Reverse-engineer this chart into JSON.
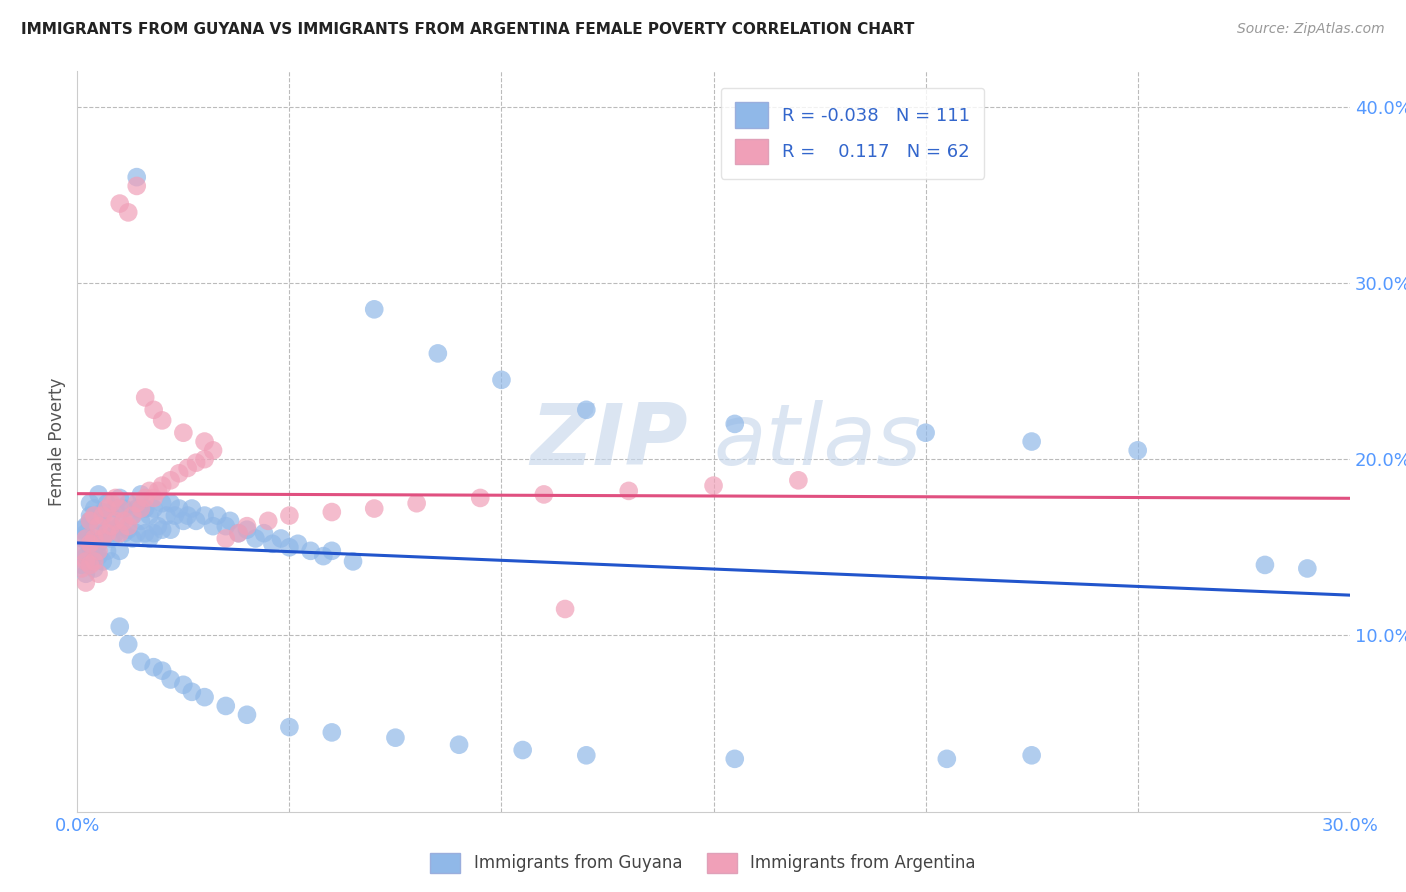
{
  "title": "IMMIGRANTS FROM GUYANA VS IMMIGRANTS FROM ARGENTINA FEMALE POVERTY CORRELATION CHART",
  "source": "Source: ZipAtlas.com",
  "ylabel_label": "Female Poverty",
  "xlim": [
    0.0,
    0.3
  ],
  "ylim": [
    0.0,
    0.42
  ],
  "xtick_vals": [
    0.0,
    0.05,
    0.1,
    0.15,
    0.2,
    0.25,
    0.3
  ],
  "xtick_labels": [
    "0.0%",
    "",
    "",
    "",
    "",
    "",
    "30.0%"
  ],
  "ytick_vals": [
    0.0,
    0.1,
    0.2,
    0.3,
    0.4
  ],
  "ytick_labels": [
    "",
    "10.0%",
    "20.0%",
    "30.0%",
    "40.0%"
  ],
  "guyana_color": "#90b8e8",
  "argentina_color": "#f0a0b8",
  "guyana_line_color": "#2255cc",
  "argentina_line_color": "#e05080",
  "legend_R_guyana": "-0.038",
  "legend_N_guyana": "111",
  "legend_R_argentina": "0.117",
  "legend_N_argentina": "62",
  "watermark_zip": "ZIP",
  "watermark_atlas": "atlas",
  "guyana_x": [
    0.001,
    0.001,
    0.001,
    0.001,
    0.002,
    0.002,
    0.002,
    0.002,
    0.003,
    0.003,
    0.003,
    0.003,
    0.003,
    0.004,
    0.004,
    0.004,
    0.004,
    0.005,
    0.005,
    0.005,
    0.005,
    0.006,
    0.006,
    0.006,
    0.007,
    0.007,
    0.007,
    0.008,
    0.008,
    0.008,
    0.009,
    0.009,
    0.01,
    0.01,
    0.01,
    0.011,
    0.011,
    0.012,
    0.012,
    0.013,
    0.013,
    0.014,
    0.014,
    0.015,
    0.015,
    0.016,
    0.016,
    0.017,
    0.017,
    0.018,
    0.018,
    0.019,
    0.02,
    0.02,
    0.021,
    0.022,
    0.022,
    0.023,
    0.024,
    0.025,
    0.026,
    0.027,
    0.028,
    0.03,
    0.032,
    0.033,
    0.035,
    0.036,
    0.038,
    0.04,
    0.042,
    0.044,
    0.046,
    0.048,
    0.05,
    0.052,
    0.055,
    0.058,
    0.06,
    0.065,
    0.01,
    0.012,
    0.015,
    0.018,
    0.02,
    0.022,
    0.025,
    0.027,
    0.03,
    0.035,
    0.04,
    0.05,
    0.06,
    0.075,
    0.09,
    0.105,
    0.12,
    0.155,
    0.205,
    0.225,
    0.07,
    0.085,
    0.1,
    0.12,
    0.155,
    0.2,
    0.225,
    0.25,
    0.28,
    0.29,
    0.014
  ],
  "guyana_y": [
    0.155,
    0.16,
    0.148,
    0.14,
    0.158,
    0.162,
    0.145,
    0.135,
    0.168,
    0.15,
    0.142,
    0.165,
    0.175,
    0.172,
    0.158,
    0.145,
    0.138,
    0.18,
    0.165,
    0.152,
    0.145,
    0.17,
    0.155,
    0.142,
    0.175,
    0.16,
    0.148,
    0.168,
    0.155,
    0.142,
    0.172,
    0.158,
    0.178,
    0.162,
    0.148,
    0.172,
    0.158,
    0.175,
    0.16,
    0.168,
    0.155,
    0.172,
    0.158,
    0.18,
    0.165,
    0.172,
    0.158,
    0.168,
    0.155,
    0.172,
    0.158,
    0.162,
    0.175,
    0.16,
    0.168,
    0.175,
    0.16,
    0.168,
    0.172,
    0.165,
    0.168,
    0.172,
    0.165,
    0.168,
    0.162,
    0.168,
    0.162,
    0.165,
    0.158,
    0.16,
    0.155,
    0.158,
    0.152,
    0.155,
    0.15,
    0.152,
    0.148,
    0.145,
    0.148,
    0.142,
    0.105,
    0.095,
    0.085,
    0.082,
    0.08,
    0.075,
    0.072,
    0.068,
    0.065,
    0.06,
    0.055,
    0.048,
    0.045,
    0.042,
    0.038,
    0.035,
    0.032,
    0.03,
    0.03,
    0.032,
    0.285,
    0.26,
    0.245,
    0.228,
    0.22,
    0.215,
    0.21,
    0.205,
    0.14,
    0.138,
    0.36
  ],
  "argentina_x": [
    0.001,
    0.001,
    0.002,
    0.002,
    0.002,
    0.003,
    0.003,
    0.003,
    0.004,
    0.004,
    0.004,
    0.005,
    0.005,
    0.005,
    0.006,
    0.006,
    0.007,
    0.007,
    0.008,
    0.008,
    0.009,
    0.009,
    0.01,
    0.01,
    0.011,
    0.012,
    0.013,
    0.014,
    0.015,
    0.016,
    0.017,
    0.018,
    0.019,
    0.02,
    0.022,
    0.024,
    0.026,
    0.028,
    0.03,
    0.032,
    0.035,
    0.038,
    0.04,
    0.045,
    0.05,
    0.06,
    0.07,
    0.08,
    0.095,
    0.11,
    0.13,
    0.15,
    0.17,
    0.01,
    0.012,
    0.014,
    0.016,
    0.018,
    0.02,
    0.025,
    0.03,
    0.115
  ],
  "argentina_y": [
    0.148,
    0.138,
    0.155,
    0.142,
    0.13,
    0.165,
    0.152,
    0.14,
    0.168,
    0.155,
    0.142,
    0.162,
    0.148,
    0.135,
    0.168,
    0.155,
    0.172,
    0.158,
    0.175,
    0.162,
    0.178,
    0.165,
    0.172,
    0.158,
    0.165,
    0.162,
    0.168,
    0.175,
    0.172,
    0.178,
    0.182,
    0.178,
    0.182,
    0.185,
    0.188,
    0.192,
    0.195,
    0.198,
    0.2,
    0.205,
    0.155,
    0.158,
    0.162,
    0.165,
    0.168,
    0.17,
    0.172,
    0.175,
    0.178,
    0.18,
    0.182,
    0.185,
    0.188,
    0.345,
    0.34,
    0.355,
    0.235,
    0.228,
    0.222,
    0.215,
    0.21,
    0.115
  ]
}
